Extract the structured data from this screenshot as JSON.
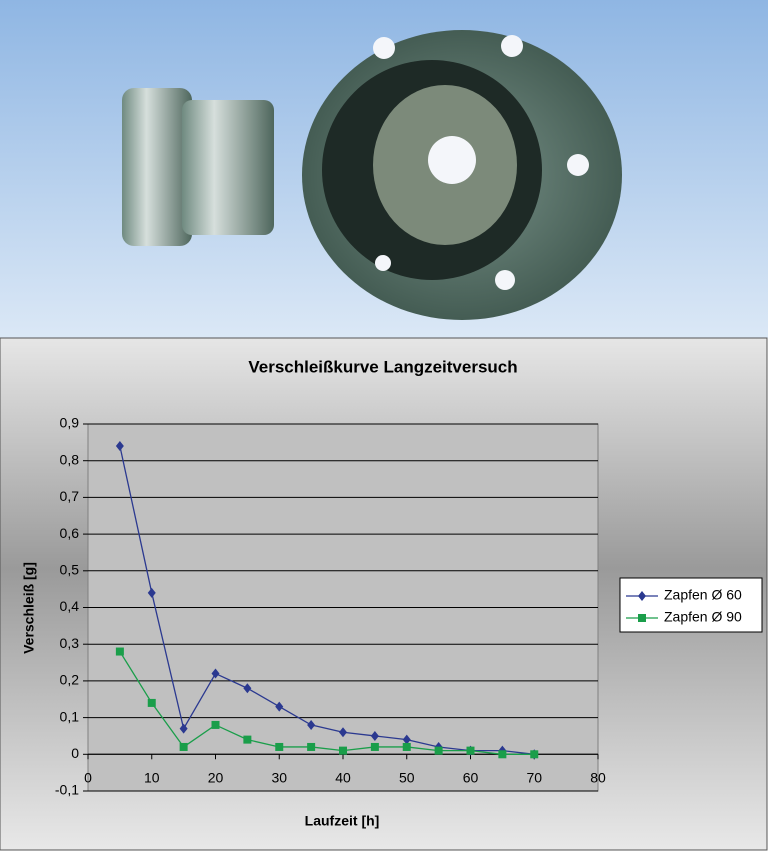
{
  "chart_data": {
    "type": "line",
    "title": "Verschleißkurve Langzeitversuch",
    "x_label": "Laufzeit [h]",
    "y_label": "Verschleiß [g]",
    "x": [
      5,
      10,
      15,
      20,
      25,
      30,
      35,
      40,
      45,
      50,
      55,
      60,
      65,
      70
    ],
    "series": [
      {
        "name": "Zapfen Ø 60",
        "color": "#2b3990",
        "marker": "diamond",
        "values": [
          0.84,
          0.44,
          0.07,
          0.22,
          0.18,
          0.13,
          0.08,
          0.06,
          0.05,
          0.04,
          0.02,
          0.01,
          0.01,
          0
        ]
      },
      {
        "name": "Zapfen Ø 90",
        "color": "#1a9e4a",
        "marker": "square",
        "values": [
          0.28,
          0.14,
          0.02,
          0.08,
          0.04,
          0.02,
          0.02,
          0.01,
          0.02,
          0.02,
          0.01,
          0.01,
          0,
          0
        ]
      }
    ],
    "xlim": [
      0,
      80
    ],
    "xticks": [
      0,
      10,
      20,
      30,
      40,
      50,
      60,
      70,
      80
    ],
    "ylim": [
      -0.1,
      0.9
    ],
    "yticks": [
      {
        "value": -0.1,
        "label": "-0,1"
      },
      0,
      {
        "value": 0.1,
        "label": "0,1"
      },
      {
        "value": 0.2,
        "label": "0,2"
      },
      {
        "value": 0.3,
        "label": "0,3"
      },
      {
        "value": 0.4,
        "label": "0,4"
      },
      {
        "value": 0.5,
        "label": "0,5"
      },
      {
        "value": 0.6,
        "label": "0,6"
      },
      {
        "value": 0.7,
        "label": "0,7"
      },
      {
        "value": 0.8,
        "label": "0,8"
      },
      {
        "value": 0.9,
        "label": "0,9"
      }
    ],
    "grid": true,
    "legend": "right"
  }
}
